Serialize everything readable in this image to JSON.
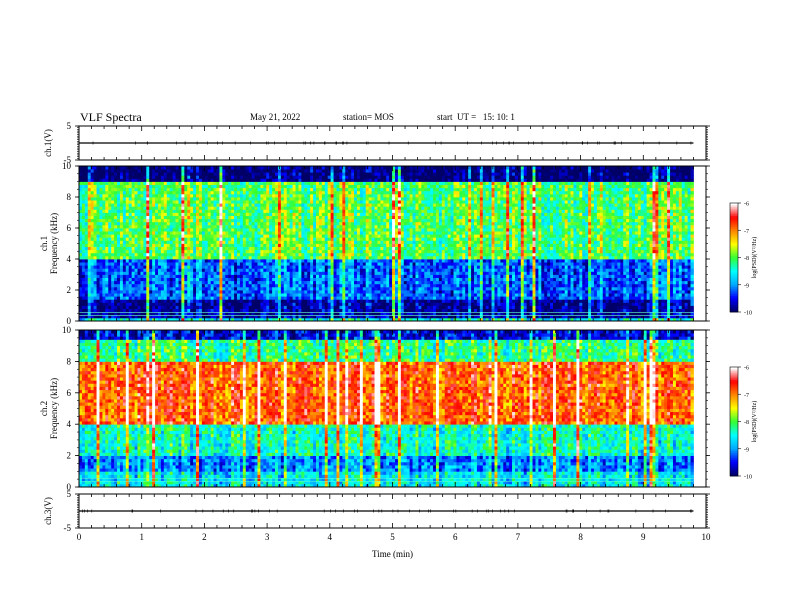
{
  "header": {
    "title": "VLF Spectra",
    "date": "May 21, 2022",
    "station": "station= MOS",
    "start": "start  UT =   15: 10: 1"
  },
  "colors": {
    "colormap": [
      "#000066",
      "#0000ff",
      "#00aaff",
      "#00ffff",
      "#33ff33",
      "#ffff00",
      "#ff8800",
      "#ff0000",
      "#ffffff"
    ],
    "trace": "#000000",
    "background": "#ffffff"
  },
  "chart_data": [
    {
      "type": "line",
      "ylabel": "ch.1(V)",
      "ylim": [
        -5,
        5
      ],
      "yticks": [
        "5",
        "-5"
      ],
      "xlim": [
        0,
        10
      ],
      "x": [
        0,
        9.8
      ],
      "y": [
        0,
        0
      ]
    },
    {
      "type": "heatmap",
      "ylabel": "ch.1\nFrequency (kHz)",
      "ylim": [
        0,
        10
      ],
      "yticks": [
        "0",
        "2",
        "4",
        "6",
        "8",
        "10"
      ],
      "xlim": [
        0,
        10
      ],
      "data_xmax": 9.8,
      "colorbar": {
        "label": "log(PSD)(V²/Hz)",
        "range": [
          -10,
          -6
        ],
        "ticks": [
          "-6",
          "-7",
          "-8",
          "-9",
          "-10"
        ]
      },
      "band_profile": [
        {
          "f_khz": [
            0,
            0.3
          ],
          "level": -8.5
        },
        {
          "f_khz": [
            0.3,
            1.5
          ],
          "level": -9.8
        },
        {
          "f_khz": [
            1.5,
            4.0
          ],
          "level": -9.2
        },
        {
          "f_khz": [
            4.0,
            9.0
          ],
          "level": -8.0
        },
        {
          "f_khz": [
            9.0,
            10.0
          ],
          "level": -10.0
        }
      ]
    },
    {
      "type": "heatmap",
      "ylabel": "ch.2\nFrequency (kHz)",
      "ylim": [
        0,
        10
      ],
      "yticks": [
        "0",
        "2",
        "4",
        "6",
        "8",
        "10"
      ],
      "xlim": [
        0,
        10
      ],
      "data_xmax": 9.8,
      "colorbar": {
        "label": "log(PSD)(V²/Hz)",
        "range": [
          -10,
          -6
        ],
        "ticks": [
          "-6",
          "-7",
          "-8",
          "-9",
          "-10"
        ]
      },
      "band_profile": [
        {
          "f_khz": [
            0,
            1.0
          ],
          "level": -8.6
        },
        {
          "f_khz": [
            1.0,
            2.0
          ],
          "level": -9.1
        },
        {
          "f_khz": [
            2.0,
            4.0
          ],
          "level": -8.4
        },
        {
          "f_khz": [
            4.0,
            8.0
          ],
          "level": -6.8
        },
        {
          "f_khz": [
            8.0,
            9.5
          ],
          "level": -8.2
        },
        {
          "f_khz": [
            9.5,
            10.0
          ],
          "level": -9.6
        }
      ]
    },
    {
      "type": "line",
      "ylabel": "ch.3(V)",
      "ylim": [
        -5,
        5
      ],
      "yticks": [
        "5",
        "-5"
      ],
      "xlim": [
        0,
        10
      ],
      "x": [
        0,
        9.8
      ],
      "y": [
        0,
        0
      ]
    }
  ],
  "xaxis": {
    "label": "Time  (min)",
    "ticks": [
      "0",
      "1",
      "2",
      "3",
      "4",
      "5",
      "6",
      "7",
      "8",
      "9",
      "10"
    ]
  }
}
